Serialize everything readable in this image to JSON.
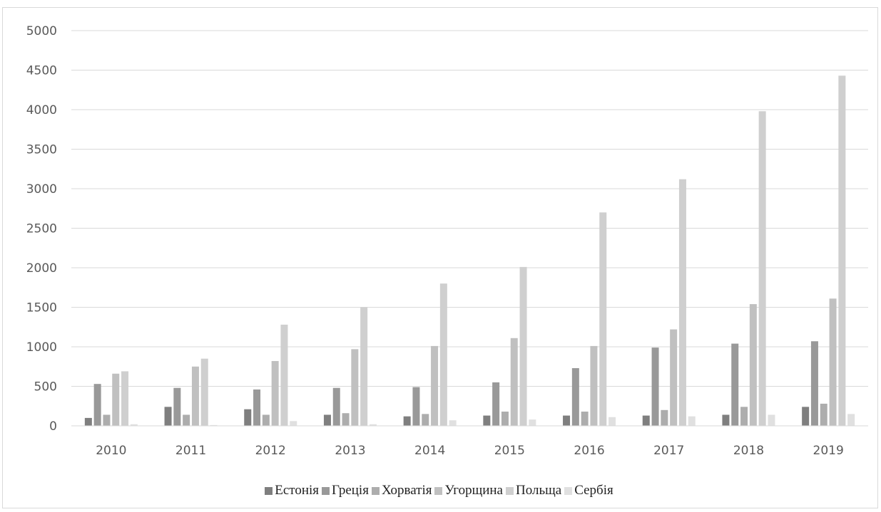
{
  "chart_data": {
    "type": "bar",
    "title": "",
    "xlabel": "",
    "ylabel": "",
    "categories": [
      "2010",
      "2011",
      "2012",
      "2013",
      "2014",
      "2015",
      "2016",
      "2017",
      "2018",
      "2019"
    ],
    "ylim": [
      0,
      5000
    ],
    "yticks": [
      "0",
      "500",
      "1000",
      "1500",
      "2000",
      "2500",
      "3000",
      "3500",
      "4000",
      "4500",
      "5000"
    ],
    "grid": true,
    "legend_position": "bottom",
    "series": [
      {
        "name": "Естонія",
        "color": "#7f7f7f",
        "values": [
          100,
          240,
          210,
          140,
          120,
          130,
          130,
          130,
          140,
          240
        ]
      },
      {
        "name": "Греція",
        "color": "#999999",
        "values": [
          530,
          480,
          460,
          480,
          490,
          550,
          730,
          990,
          1040,
          1070
        ]
      },
      {
        "name": "Хорватія",
        "color": "#adadad",
        "values": [
          140,
          140,
          140,
          160,
          150,
          180,
          180,
          200,
          240,
          280
        ]
      },
      {
        "name": "Угорщина",
        "color": "#c0c0c0",
        "values": [
          660,
          750,
          820,
          970,
          1010,
          1110,
          1010,
          1220,
          1540,
          1610
        ]
      },
      {
        "name": "Польща",
        "color": "#cfcfcf",
        "values": [
          690,
          850,
          1280,
          1500,
          1800,
          2010,
          2700,
          3120,
          3980,
          4430
        ]
      },
      {
        "name": "Сербія",
        "color": "#e0e0e0",
        "values": [
          20,
          10,
          60,
          20,
          70,
          80,
          110,
          120,
          140,
          150
        ]
      }
    ]
  }
}
